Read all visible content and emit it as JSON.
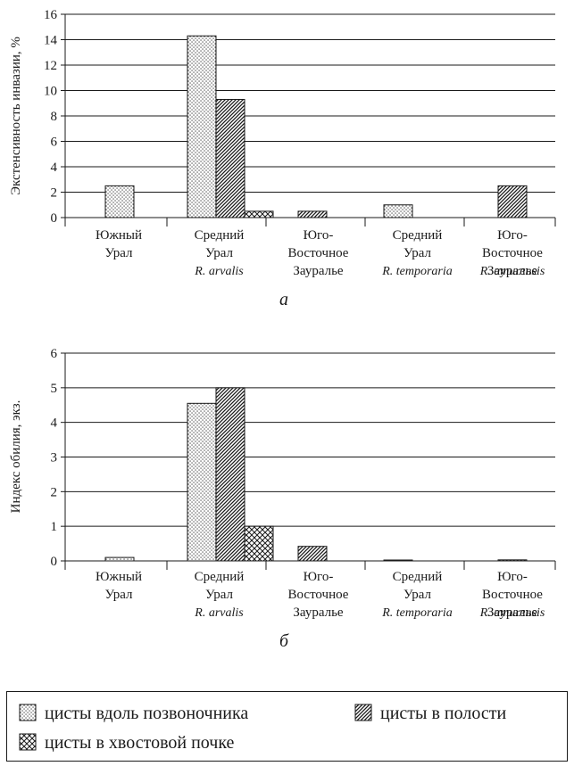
{
  "patterns": {
    "spine": "dots",
    "cavity": "diagonal-hatch",
    "tail": "crosshatch"
  },
  "colors": {
    "ink": "#1a1a1a",
    "background": "#ffffff"
  },
  "legend": [
    {
      "key": "spine",
      "label": "цисты вдоль позвоночника"
    },
    {
      "key": "cavity",
      "label": "цисты в полости"
    },
    {
      "key": "tail",
      "label": "цисты в хвостовой почке"
    }
  ],
  "chart_data": [
    {
      "type": "bar",
      "panel_label": "а",
      "ylabel": "Экстенсивность инвазии, %",
      "ylim": [
        0,
        16
      ],
      "yticks": [
        "0",
        "2",
        "4",
        "6",
        "8",
        "10",
        "12",
        "14",
        "16"
      ],
      "grid": true,
      "categories": [
        {
          "lines": [
            "Южный",
            "Урал"
          ]
        },
        {
          "lines": [
            "Средний",
            "Урал"
          ]
        },
        {
          "lines": [
            "Юго-",
            "Восточное",
            "Зауралье"
          ]
        },
        {
          "lines": [
            "Средний",
            "Урал"
          ]
        },
        {
          "lines": [
            "Юго-",
            "Восточное",
            "Зауралье"
          ]
        }
      ],
      "species": [
        {
          "label": "R. arvalis",
          "under_category": 1
        },
        {
          "label": "R. temporaria",
          "under_category": 3
        },
        {
          "label": "R. amurensis",
          "under_category": 4
        }
      ],
      "series": [
        {
          "key": "spine",
          "name": "цисты вдоль позвоночника",
          "values": [
            2.5,
            14.3,
            null,
            1.0,
            null
          ]
        },
        {
          "key": "cavity",
          "name": "цисты в полости",
          "values": [
            null,
            9.3,
            0.5,
            null,
            2.5
          ]
        },
        {
          "key": "tail",
          "name": "цисты в хвостовой почке",
          "values": [
            null,
            0.5,
            null,
            null,
            null
          ]
        }
      ]
    },
    {
      "type": "bar",
      "panel_label": "б",
      "ylabel": "Индекс обилия, экз.",
      "ylim": [
        0,
        6
      ],
      "yticks": [
        "0",
        "1",
        "2",
        "3",
        "4",
        "5",
        "6"
      ],
      "grid": true,
      "categories": [
        {
          "lines": [
            "Южный",
            "Урал"
          ]
        },
        {
          "lines": [
            "Средний",
            "Урал"
          ]
        },
        {
          "lines": [
            "Юго-",
            "Восточное",
            "Зауралье"
          ]
        },
        {
          "lines": [
            "Средний",
            "Урал"
          ]
        },
        {
          "lines": [
            "Юго-",
            "Восточное",
            "Зауралье"
          ]
        }
      ],
      "species": [
        {
          "label": "R. arvalis",
          "under_category": 1
        },
        {
          "label": "R. temporaria",
          "under_category": 3
        },
        {
          "label": "R. amurensis",
          "under_category": 4
        }
      ],
      "series": [
        {
          "key": "spine",
          "name": "цисты вдоль позвоночника",
          "values": [
            0.1,
            4.55,
            null,
            0.02,
            null
          ]
        },
        {
          "key": "cavity",
          "name": "цисты в полости",
          "values": [
            null,
            5.0,
            0.42,
            null,
            0.03
          ]
        },
        {
          "key": "tail",
          "name": "цисты в хвостовой почке",
          "values": [
            null,
            1.0,
            null,
            null,
            null
          ]
        }
      ]
    }
  ]
}
